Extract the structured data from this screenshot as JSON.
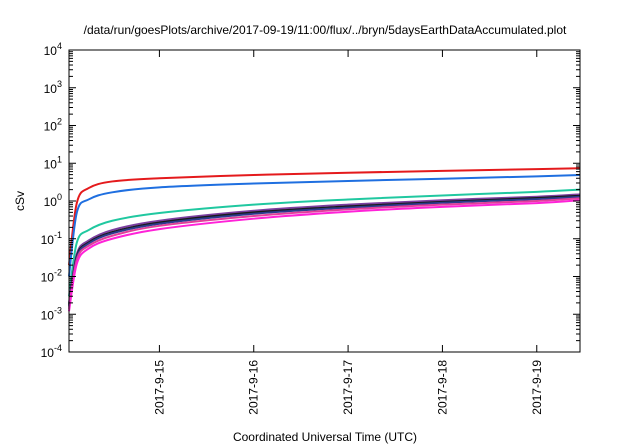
{
  "chart_data": {
    "type": "line",
    "title": "/data/run/goesPlots/archive/2017-09-19/11:00/flux/../bryn/5daysEarthDataAccumulated.plot",
    "xlabel": "Coordinated Universal Time (UTC)",
    "ylabel": "cSv",
    "xscale": "time",
    "yscale": "log",
    "xlim": [
      "2017-09-14 01:00",
      "2017-09-19 11:00"
    ],
    "ylim": [
      0.0001,
      10000
    ],
    "x_ticks": [
      "2017-9-15",
      "2017-9-16",
      "2017-9-17",
      "2017-9-18",
      "2017-9-19"
    ],
    "y_ticks": [
      {
        "v": 0.0001,
        "base": "10",
        "exp": "-4"
      },
      {
        "v": 0.001,
        "base": "10",
        "exp": "-3"
      },
      {
        "v": 0.01,
        "base": "10",
        "exp": "-2"
      },
      {
        "v": 0.1,
        "base": "10",
        "exp": "-1"
      },
      {
        "v": 1,
        "base": "10",
        "exp": "0"
      },
      {
        "v": 10,
        "base": "10",
        "exp": "1"
      },
      {
        "v": 100,
        "base": "10",
        "exp": "2"
      },
      {
        "v": 1000,
        "base": "10",
        "exp": "3"
      },
      {
        "v": 10000,
        "base": "10",
        "exp": "4"
      }
    ],
    "grid": false,
    "legend": "none",
    "series": [
      {
        "color": "#e41a1c",
        "x": [
          "2017-09-14 01:00",
          "2017-09-14 03:00",
          "2017-09-14 06:00",
          "2017-09-14 12:00",
          "2017-09-15 00:00",
          "2017-09-16 00:00",
          "2017-09-17 00:00",
          "2017-09-18 00:00",
          "2017-09-19 00:00",
          "2017-09-19 11:00"
        ],
        "y": [
          0.02,
          0.9,
          2.2,
          3.3,
          4.0,
          4.9,
          5.6,
          6.3,
          7.0,
          7.4
        ]
      },
      {
        "color": "#1f6fe0",
        "x": [
          "2017-09-14 01:00",
          "2017-09-14 03:00",
          "2017-09-14 06:00",
          "2017-09-14 12:00",
          "2017-09-15 00:00",
          "2017-09-16 00:00",
          "2017-09-17 00:00",
          "2017-09-18 00:00",
          "2017-09-19 00:00",
          "2017-09-19 11:00"
        ],
        "y": [
          0.01,
          0.5,
          1.1,
          1.7,
          2.3,
          2.9,
          3.4,
          3.9,
          4.5,
          4.9
        ]
      },
      {
        "color": "#20c8a0",
        "x": [
          "2017-09-14 01:00",
          "2017-09-14 03:00",
          "2017-09-14 06:00",
          "2017-09-14 12:00",
          "2017-09-15 00:00",
          "2017-09-16 00:00",
          "2017-09-17 00:00",
          "2017-09-18 00:00",
          "2017-09-19 00:00",
          "2017-09-19 11:00"
        ],
        "y": [
          0.003,
          0.08,
          0.17,
          0.3,
          0.48,
          0.8,
          1.1,
          1.4,
          1.75,
          2.0
        ]
      },
      {
        "color": "#7b3fa0",
        "x": [
          "2017-09-14 01:00",
          "2017-09-14 03:00",
          "2017-09-14 06:00",
          "2017-09-14 12:00",
          "2017-09-15 00:00",
          "2017-09-16 00:00",
          "2017-09-17 00:00",
          "2017-09-18 00:00",
          "2017-09-19 00:00",
          "2017-09-19 11:00"
        ],
        "y": [
          0.002,
          0.04,
          0.09,
          0.17,
          0.3,
          0.55,
          0.8,
          1.05,
          1.3,
          1.5
        ]
      },
      {
        "color": "#1a1a1a",
        "x": [
          "2017-09-14 01:00",
          "2017-09-14 03:00",
          "2017-09-14 06:00",
          "2017-09-14 12:00",
          "2017-09-15 00:00",
          "2017-09-16 00:00",
          "2017-09-17 00:00",
          "2017-09-18 00:00",
          "2017-09-19 00:00",
          "2017-09-19 11:00"
        ],
        "y": [
          0.0018,
          0.035,
          0.08,
          0.15,
          0.27,
          0.5,
          0.72,
          0.95,
          1.2,
          1.38
        ]
      },
      {
        "color": "#2b3a8c",
        "x": [
          "2017-09-14 01:00",
          "2017-09-14 03:00",
          "2017-09-14 06:00",
          "2017-09-14 12:00",
          "2017-09-15 00:00",
          "2017-09-16 00:00",
          "2017-09-17 00:00",
          "2017-09-18 00:00",
          "2017-09-19 00:00",
          "2017-09-19 11:00"
        ],
        "y": [
          0.0016,
          0.032,
          0.075,
          0.14,
          0.25,
          0.46,
          0.67,
          0.9,
          1.12,
          1.3
        ]
      },
      {
        "color": "#e0409a",
        "x": [
          "2017-09-14 01:00",
          "2017-09-14 03:00",
          "2017-09-14 06:00",
          "2017-09-14 12:00",
          "2017-09-15 00:00",
          "2017-09-16 00:00",
          "2017-09-17 00:00",
          "2017-09-18 00:00",
          "2017-09-19 00:00",
          "2017-09-19 11:00"
        ],
        "y": [
          0.0014,
          0.028,
          0.065,
          0.12,
          0.22,
          0.4,
          0.6,
          0.8,
          1.0,
          1.18
        ]
      },
      {
        "color": "#ff22d8",
        "x": [
          "2017-09-14 01:00",
          "2017-09-14 03:00",
          "2017-09-14 06:00",
          "2017-09-14 12:00",
          "2017-09-15 00:00",
          "2017-09-16 00:00",
          "2017-09-17 00:00",
          "2017-09-18 00:00",
          "2017-09-19 00:00",
          "2017-09-19 11:00"
        ],
        "y": [
          0.0012,
          0.022,
          0.055,
          0.1,
          0.18,
          0.34,
          0.52,
          0.7,
          0.88,
          1.05
        ]
      }
    ]
  }
}
